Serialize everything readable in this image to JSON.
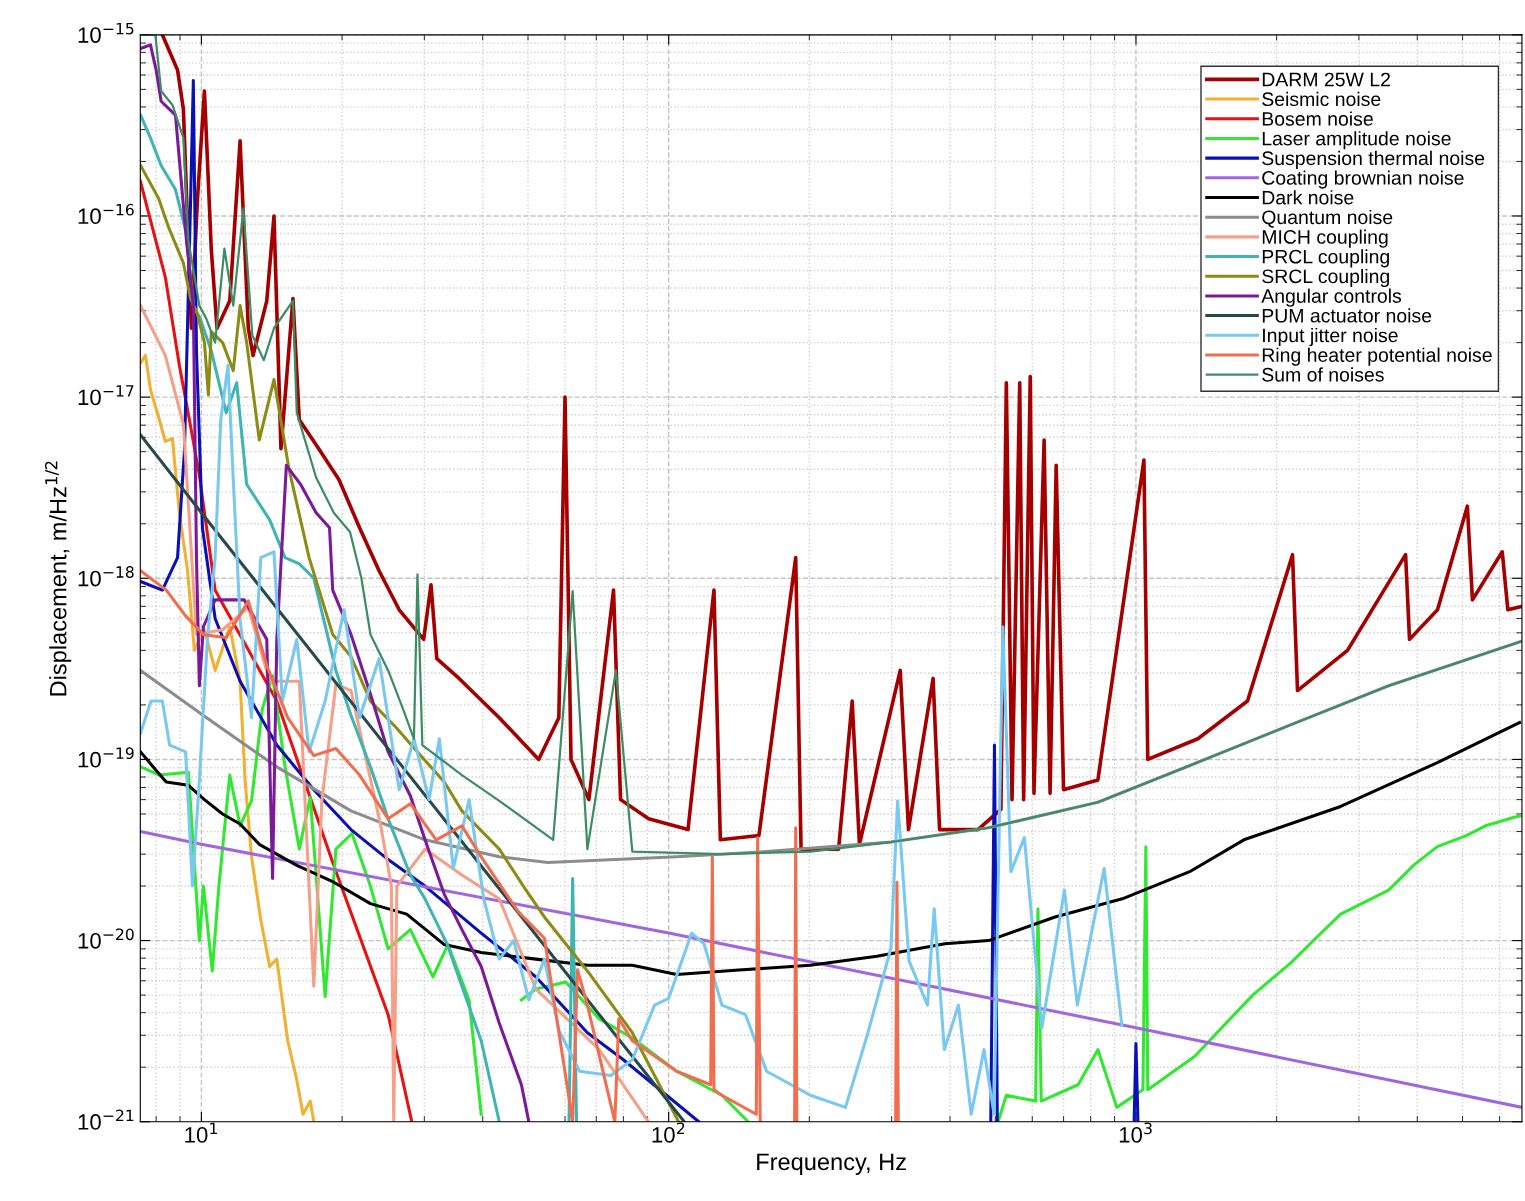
{
  "chart_data": {
    "type": "line",
    "log": "xy",
    "grid": true,
    "legend": "top right",
    "xlabel": "Frequency, Hz",
    "ylabel": "Displacement, m/Hz$^{1/2}$",
    "xlim": [
      7.4,
      6700
    ],
    "ylim": [
      1e-21,
      1e-15
    ],
    "xticks": [
      {
        "value": 10,
        "label": "10$^{1}$"
      },
      {
        "value": 100,
        "label": "10$^{2}$"
      },
      {
        "value": 1000,
        "label": "10$^{3}$"
      }
    ],
    "yticks": [
      {
        "value": 1e-21,
        "label": "10$^{−21}$"
      },
      {
        "value": 1e-20,
        "label": "10$^{−20}$"
      },
      {
        "value": 1e-19,
        "label": "10$^{−19}$"
      },
      {
        "value": 1e-18,
        "label": "10$^{−18}$"
      },
      {
        "value": 1e-17,
        "label": "10$^{−17}$"
      },
      {
        "value": 1e-16,
        "label": "10$^{−16}$"
      },
      {
        "value": 1e-15,
        "label": "10$^{−15}$"
      }
    ],
    "series": [
      {
        "name": "DARM 25W L2",
        "color": "#a50000",
        "x": [
          8.25,
          8.89,
          9.15,
          9.52,
          9.8,
          10.15,
          10.5,
          10.8,
          11.5,
          12.1,
          12.6,
          12.9,
          13.8,
          14.3,
          14.8,
          15.7,
          16.2,
          17.9,
          19.7,
          21.8,
          24.0,
          26.5,
          29.9,
          31.0,
          31.9,
          35.6,
          43.4,
          52.7,
          58.2,
          60,
          61.8,
          67.5,
          76.2,
          78.9,
          90.6,
          110,
          125,
          129,
          156,
          187,
          192,
          231,
          247,
          256,
          313,
          326,
          368,
          380,
          459,
          514,
          528,
          543,
          564,
          575,
          594,
          605,
          636,
          655,
          675,
          700,
          829,
          1040,
          1060,
          1357,
          1733,
          2163,
          2217,
          2836,
          3776,
          3850,
          4420,
          5120,
          5250,
          6080,
          6250,
          6700
        ],
        "values": [
          1e-15,
          6.4e-16,
          3.9e-16,
          2.4e-17,
          1.2e-16,
          4.9e-16,
          6.5e-17,
          2.4e-17,
          3.4e-17,
          2.6e-16,
          2.4e-17,
          1.7e-17,
          3.4e-17,
          1e-16,
          5.2e-18,
          3.5e-17,
          7.5e-18,
          5.1e-18,
          3.5e-18,
          1.9e-18,
          1.1e-18,
          6.7e-19,
          4.6e-19,
          9.2e-19,
          3.6e-19,
          2.8e-19,
          1.7e-19,
          1e-19,
          1.7e-19,
          1e-17,
          1e-19,
          6e-20,
          8.6e-19,
          6e-20,
          4.7e-20,
          4.1e-20,
          8.6e-19,
          3.6e-20,
          3.8e-20,
          1.3e-18,
          3.2e-20,
          3.2e-20,
          2.1e-19,
          3.4e-20,
          3.1e-19,
          4.1e-20,
          2.8e-19,
          4.1e-20,
          4.1e-20,
          5.3e-20,
          1.2e-17,
          6e-20,
          1.2e-17,
          6e-20,
          1.3e-17,
          6.5e-20,
          5.8e-18,
          6.5e-20,
          4.2e-18,
          6.8e-20,
          7.7e-20,
          4.5e-18,
          1e-19,
          1.3e-19,
          2.1e-19,
          1.35e-18,
          2.4e-19,
          4e-19,
          1.35e-18,
          4.6e-19,
          6.7e-19,
          2.5e-18,
          7.6e-19,
          1.4e-18,
          6.7e-19,
          7e-19
        ]
      },
      {
        "name": "Seismic noise",
        "color": "#f0b030",
        "x": [
          7.42,
          7.59,
          7.78,
          8.13,
          8.37,
          8.67,
          8.97,
          9.34,
          9.66,
          10.15,
          10.7,
          11.5,
          12.1,
          12.4,
          12.8,
          13.4,
          14.0,
          14.5,
          15.3,
          16.0,
          16.5,
          17.1,
          17.4
        ],
        "values": [
          1.55e-17,
          1.7e-17,
          1.1e-17,
          7.5e-18,
          5.7e-18,
          5.9e-18,
          2.3e-18,
          1.1e-18,
          4e-19,
          5.2e-19,
          3.1e-19,
          5.4e-19,
          2.7e-19,
          7.7e-20,
          2.9e-20,
          1.3e-20,
          7.2e-21,
          7.9e-21,
          2.8e-21,
          1.7e-21,
          1.1e-21,
          1.3e-21,
          1e-21
        ]
      },
      {
        "name": "Bosem noise",
        "color": "#e81010",
        "x": [
          7.4,
          7.78,
          8.37,
          8.97,
          9.48,
          9.9,
          10.7,
          14.5,
          19.1,
          25.1,
          28.2
        ],
        "values": [
          1.56e-16,
          9.5e-17,
          4.6e-17,
          1.5e-17,
          6.9e-18,
          3.7e-18,
          8.6e-19,
          2.1e-19,
          2.7e-20,
          3.9e-21,
          1e-21
        ]
      },
      {
        "name": "Laser amplitude noise",
        "color": "#30e830",
        "x": [
          7.41,
          8.13,
          9.38,
          9.9,
          10.1,
          10.55,
          10.9,
          11.5,
          12.1,
          12.8,
          13.5,
          14.2,
          15.1,
          16.2,
          17.1,
          18.4,
          19.4,
          21.0,
          23.0,
          25.1,
          28.0,
          31.3,
          33.7,
          37.4,
          39.7,
          43.4,
          48.4,
          52.0,
          60.2,
          71.0,
          83.6,
          104,
          130,
          148,
          null,
          507,
          528,
          610,
          617,
          627,
          752,
          829,
          910,
          1035,
          1050,
          1060,
          1337,
          1542,
          1778,
          2154,
          2425,
          2742,
          3474,
          3926,
          4416,
          5093,
          5597,
          6454,
          6700
        ],
        "values": [
          9.1e-20,
          8.2e-20,
          8.5e-20,
          1e-20,
          2e-20,
          6.8e-21,
          2e-20,
          8.2e-20,
          4.3e-20,
          5.9e-20,
          1.9e-19,
          2.9e-19,
          9.1e-20,
          3.2e-20,
          6.2e-20,
          4.9e-21,
          3.2e-20,
          3.9e-20,
          2e-20,
          9e-21,
          1.15e-20,
          6.3e-21,
          9.5e-21,
          4.7e-21,
          1.1e-21,
          null,
          4.7e-21,
          5.4e-21,
          5.9e-21,
          3.7e-21,
          2.9e-21,
          1.9e-21,
          1.4e-21,
          1e-21,
          null,
          1e-21,
          1.4e-21,
          1.3e-21,
          1.5e-20,
          1.3e-21,
          1.6e-21,
          2.5e-21,
          1.2e-21,
          1.5e-21,
          3.3e-20,
          1.5e-21,
          2.3e-21,
          3.4e-21,
          5e-21,
          7.6e-21,
          1.03e-20,
          1.4e-20,
          1.9e-20,
          2.6e-20,
          3.3e-20,
          3.8e-20,
          4.3e-20,
          4.8e-20,
          4.9e-20
        ]
      },
      {
        "name": "Suspension thermal noise",
        "color": "#0a10b4",
        "x": [
          7.41,
          8.25,
          8.89,
          9.2,
          9.48,
          9.61,
          9.76,
          10.05,
          10.7,
          12.1,
          14.5,
          17.4,
          20.9,
          25.1,
          30.1,
          39.7,
          52.0,
          67.0,
          80.0,
          116,
          null,
          489,
          498,
          505,
          null,
          991,
          1000,
          1010
        ],
        "values": [
          9.6e-19,
          8.6e-19,
          1.3e-18,
          5.1e-18,
          1.2e-16,
          5.6e-16,
          1.8e-17,
          1.9e-18,
          6e-19,
          2.7e-19,
          1.2e-19,
          6.8e-20,
          4.1e-20,
          2.8e-20,
          2e-20,
          1.1e-20,
          6.3e-21,
          3.1e-21,
          2.2e-21,
          1e-21,
          null,
          1e-21,
          1.2e-19,
          1e-21,
          null,
          1e-21,
          2.7e-21,
          1e-21
        ]
      },
      {
        "name": "Coating brownian noise",
        "color": "#a066e0",
        "x": [
          7.4,
          10,
          100,
          1000,
          6700
        ],
        "values": [
          4e-20,
          3.4e-20,
          1.1e-20,
          3.3e-21,
          1.2e-21
        ]
      },
      {
        "name": "Dark noise",
        "color": "#000000",
        "x": [
          7.41,
          7.97,
          8.41,
          9.38,
          10.15,
          11.1,
          12.1,
          13.3,
          16.0,
          19.2,
          23.0,
          27.5,
          33.1,
          39.7,
          52.0,
          67.0,
          83.6,
          104,
          144,
          201,
          279,
          390,
          484,
          671,
          935,
          1303,
          1702,
          2742,
          4416,
          6622
        ],
        "values": [
          1.1e-19,
          8.8e-20,
          7.5e-20,
          7.2e-20,
          6e-20,
          5e-20,
          4.4e-20,
          3.4e-20,
          2.6e-20,
          2.1e-20,
          1.6e-20,
          1.4e-20,
          9.5e-21,
          8.6e-21,
          7.9e-21,
          7.3e-21,
          7.3e-21,
          6.5e-21,
          6.9e-21,
          7.3e-21,
          8.2e-21,
          9.6e-21,
          1e-20,
          1.35e-20,
          1.7e-20,
          2.4e-20,
          3.6e-20,
          5.5e-20,
          9.6e-20,
          1.6e-19
        ]
      },
      {
        "name": "Quantum noise",
        "color": "#8c8c8c",
        "x": [
          7.41,
          10.1,
          14.5,
          20.9,
          30.1,
          43.4,
          55.1,
          104,
          162,
          299,
          484,
          829,
          1337,
          2154,
          3474,
          6700
        ],
        "values": [
          3.1e-19,
          1.75e-19,
          9.1e-20,
          5.2e-20,
          3.6e-20,
          2.9e-20,
          2.7e-20,
          2.9e-20,
          3.1e-20,
          3.5e-20,
          4.2e-20,
          5.8e-20,
          9.5e-20,
          1.56e-19,
          2.55e-19,
          4.5e-19
        ]
      },
      {
        "name": "MICH coupling",
        "color": "#f4a088",
        "x": [
          7.41,
          8.37,
          9.15,
          9.76,
          11.1,
          12.6,
          14.0,
          16.2,
          17.4,
          18.1,
          19.4,
          20.9,
          24.2,
          25.5,
          25.8,
          26.2,
          30.1,
          36.1,
          43.4,
          52.0,
          71.0,
          90.5
        ],
        "values": [
          3.2e-17,
          1.7e-17,
          7.1e-18,
          4.9e-19,
          5.2e-19,
          6.9e-19,
          2.7e-19,
          2.7e-19,
          5.6e-21,
          5.9e-20,
          2.6e-19,
          2.4e-19,
          4.3e-20,
          2e-20,
          1e-21,
          2e-20,
          3.2e-20,
          2.3e-20,
          1.7e-20,
          5.4e-21,
          2.5e-21,
          1e-21
        ]
      },
      {
        "name": "PRCL coupling",
        "color": "#40b4b4",
        "x": [
          7.41,
          7.78,
          8.2,
          8.8,
          9.29,
          9.61,
          9.95,
          10.5,
          11.3,
          11.9,
          12.5,
          14.0,
          15.1,
          16.2,
          17.4,
          19.4,
          20.9,
          23.0,
          25.1,
          28.0,
          30.1,
          33.6,
          36.1,
          39.7,
          43.4,
          null,
          61.2,
          62.3,
          63.5
        ],
        "values": [
          3.6e-16,
          2.7e-16,
          1.9e-16,
          1.4e-16,
          8e-17,
          3.2e-17,
          2.7e-17,
          1.8e-17,
          8.2e-18,
          1.2e-17,
          3.3e-18,
          2.1e-18,
          1.3e-18,
          1.2e-18,
          1e-18,
          3.1e-19,
          1.75e-19,
          9.1e-20,
          4.7e-20,
          2.3e-20,
          1.7e-20,
          9.5e-21,
          5.6e-21,
          2.8e-21,
          1e-21,
          null,
          1e-21,
          2.2e-20,
          1e-21
        ]
      },
      {
        "name": "SRCL coupling",
        "color": "#8c8c14",
        "x": [
          7.41,
          8.1,
          8.5,
          9.15,
          9.48,
          9.8,
          10.15,
          10.35,
          10.5,
          11.1,
          11.7,
          12.1,
          12.5,
          13.3,
          14.3,
          15.4,
          17.0,
          19.1,
          20.9,
          23.0,
          26.1,
          29.0,
          33.1,
          36.1,
          43.4,
          49.5,
          54.2,
          67.0,
          83.6,
          105
        ],
        "values": [
          1.9e-16,
          1.25e-16,
          8.7e-17,
          5.5e-17,
          3.5e-17,
          2.9e-17,
          2e-17,
          1.03e-17,
          2.3e-17,
          2e-17,
          1.4e-17,
          3.2e-17,
          2e-17,
          5.8e-18,
          1.25e-17,
          4e-18,
          1.3e-18,
          4.9e-19,
          3.7e-19,
          2.1e-19,
          1.5e-19,
          1.1e-19,
          7.5e-20,
          5.2e-20,
          3.2e-20,
          1.9e-20,
          1.35e-20,
          6.8e-21,
          3.1e-21,
          1e-21
        ]
      },
      {
        "name": "Angular controls",
        "color": "#7a1a9a",
        "x": [
          7.41,
          7.78,
          8.0,
          8.2,
          8.8,
          9.29,
          9.61,
          9.76,
          9.9,
          10.1,
          10.7,
          12.35,
          13.8,
          14.2,
          14.5,
          15.2,
          16.3,
          17.6,
          18.8,
          19.1,
          20.9,
          23.0,
          25.1,
          28.0,
          30.1,
          33.1,
          36.1,
          39.7,
          43.4,
          48.4,
          50.2
        ],
        "values": [
          8.4e-16,
          8.8e-16,
          6.4e-16,
          4.3e-16,
          3.6e-16,
          7.3e-17,
          3.2e-17,
          1.3e-18,
          2.55e-19,
          5.4e-19,
          7.6e-19,
          7.6e-19,
          4.6e-19,
          2.2e-20,
          4.6e-19,
          4.2e-18,
          3.3e-18,
          2.3e-18,
          1.9e-18,
          8.6e-19,
          4.9e-19,
          2.3e-19,
          1.1e-19,
          6.3e-20,
          3.6e-20,
          1.8e-20,
          1.15e-20,
          7.2e-21,
          3.5e-21,
          1.6e-21,
          1e-21
        ]
      },
      {
        "name": "PUM actuator noise",
        "color": "#27494b",
        "x": [
          7.4,
          10,
          26.5,
          108
        ],
        "values": [
          6.2e-18,
          2.3e-18,
          9.6e-20,
          1e-21
        ]
      },
      {
        "name": "Input jitter noise",
        "color": "#78c8f0",
        "x": [
          7.41,
          7.8,
          8.25,
          8.55,
          9.25,
          9.57,
          9.9,
          10.3,
          10.7,
          11.0,
          11.4,
          11.7,
          12.1,
          12.8,
          13.4,
          14.3,
          14.9,
          16.0,
          17.0,
          18.4,
          20.2,
          21.8,
          24.0,
          26.5,
          28.5,
          30.7,
          32.3,
          34.6,
          37.4,
          40.2,
          43.4,
          46.6,
          50.2,
          54.2,
          58.2,
          64.5,
          75.2,
          83.6,
          93.3,
          100,
          112,
          119,
          130,
          146,
          162,
          201,
          239,
          267,
          299,
          309,
          327,
          358,
          370,
          389,
          417,
          444,
          473,
          497,
          519,
          540,
          577,
          629,
          703,
          749,
          855,
          933
        ],
        "values": [
          1.4e-19,
          2.1e-19,
          2.1e-19,
          1.2e-19,
          1.1e-19,
          2e-20,
          7.7e-20,
          4.6e-19,
          1.3e-18,
          7.5e-18,
          1.5e-17,
          3.5e-18,
          5.9e-19,
          1.7e-19,
          1.3e-18,
          1.4e-18,
          2.1e-19,
          4.6e-19,
          1.1e-19,
          2.1e-19,
          6.7e-19,
          1.7e-19,
          3.6e-19,
          6.8e-20,
          1.3e-19,
          6e-20,
          1.3e-19,
          2.5e-20,
          6e-20,
          1.7e-20,
          7.9e-21,
          1e-20,
          4.7e-21,
          7.9e-21,
          3.2e-21,
          1.9e-21,
          1.8e-21,
          2.2e-21,
          4.4e-21,
          4.8e-21,
          1.1e-20,
          9.6e-21,
          4.4e-21,
          3.9e-21,
          1.9e-21,
          1.4e-21,
          1.2e-21,
          3.1e-21,
          9.1e-21,
          5.9e-20,
          7.7e-21,
          4.4e-21,
          1.5e-20,
          2.5e-21,
          4.4e-21,
          1.1e-21,
          2.5e-21,
          1.1e-21,
          5.4e-19,
          2.4e-20,
          3.7e-20,
          3.3e-21,
          1.9e-20,
          4.4e-21,
          2.5e-20,
          3.4e-21
        ]
      },
      {
        "name": "Ring heater potential noise",
        "color": "#f06e50",
        "x": [
          7.41,
          8.41,
          9.25,
          10.1,
          11.3,
          12.6,
          13.8,
          15.3,
          17.4,
          19.4,
          21.8,
          25.1,
          28.0,
          31.8,
          36.1,
          39.7,
          47.6,
          54.2,
          62.3,
          63.8,
          67.0,
          76.7,
          78.2,
          83.6,
          104,
          123,
          124,
          125,
          130,
          154,
          155,
          157,
          null,
          186,
          187,
          188,
          null,
          306,
          308,
          310
        ],
        "values": [
          1.1e-18,
          8.6e-19,
          6.2e-19,
          4.9e-19,
          4.7e-19,
          7.5e-19,
          3.3e-19,
          1.7e-19,
          1.05e-19,
          1.15e-19,
          8.2e-20,
          4.7e-20,
          5.7e-20,
          3.6e-20,
          4.3e-20,
          2.9e-20,
          1.45e-20,
          1.03e-20,
          1e-21,
          6.9e-21,
          4.4e-21,
          1e-21,
          3.7e-21,
          2.8e-21,
          1.9e-21,
          1.6e-21,
          2.9e-20,
          1.5e-21,
          1.4e-21,
          1.1e-21,
          3.7e-20,
          1e-21,
          null,
          1e-21,
          4.2e-20,
          1e-21,
          null,
          1e-21,
          2.1e-20,
          1e-21
        ]
      },
      {
        "name": "Sum of noises",
        "color": "#3c8c64",
        "x": [
          7.41,
          7.97,
          8.2,
          8.67,
          9.15,
          9.38,
          9.9,
          10.25,
          10.7,
          11.2,
          11.7,
          12.3,
          12.85,
          13.6,
          14.3,
          15.7,
          16.0,
          17.6,
          19.2,
          20.8,
          22.0,
          23.0,
          25.1,
          27.0,
          28.5,
          29.0,
          29.7,
          36.1,
          43.4,
          56.6,
          62.3,
          67.0,
          77.1,
          83.6,
          130,
          201,
          299,
          484,
          829,
          1337,
          2154,
          3474,
          6700
        ],
        "values": [
          1e-15,
          1e-15,
          4.9e-16,
          4.1e-16,
          2.7e-16,
          7.3e-17,
          3.2e-17,
          2.7e-17,
          2e-17,
          6.6e-17,
          3.2e-17,
          1.1e-16,
          2.2e-17,
          1.6e-17,
          2.4e-17,
          3.4e-17,
          8.2e-18,
          3.6e-18,
          2.3e-18,
          1.8e-18,
          1e-18,
          4.9e-19,
          3.1e-19,
          1.9e-19,
          1.3e-19,
          1.05e-18,
          1.2e-19,
          8.2e-20,
          5.9e-20,
          3.6e-20,
          8.5e-19,
          3.2e-20,
          3.1e-19,
          3.1e-20,
          3e-20,
          3.1e-20,
          3.5e-20,
          4.2e-20,
          5.8e-20,
          9.5e-20,
          1.56e-19,
          2.55e-19,
          4.5e-19
        ]
      }
    ]
  }
}
